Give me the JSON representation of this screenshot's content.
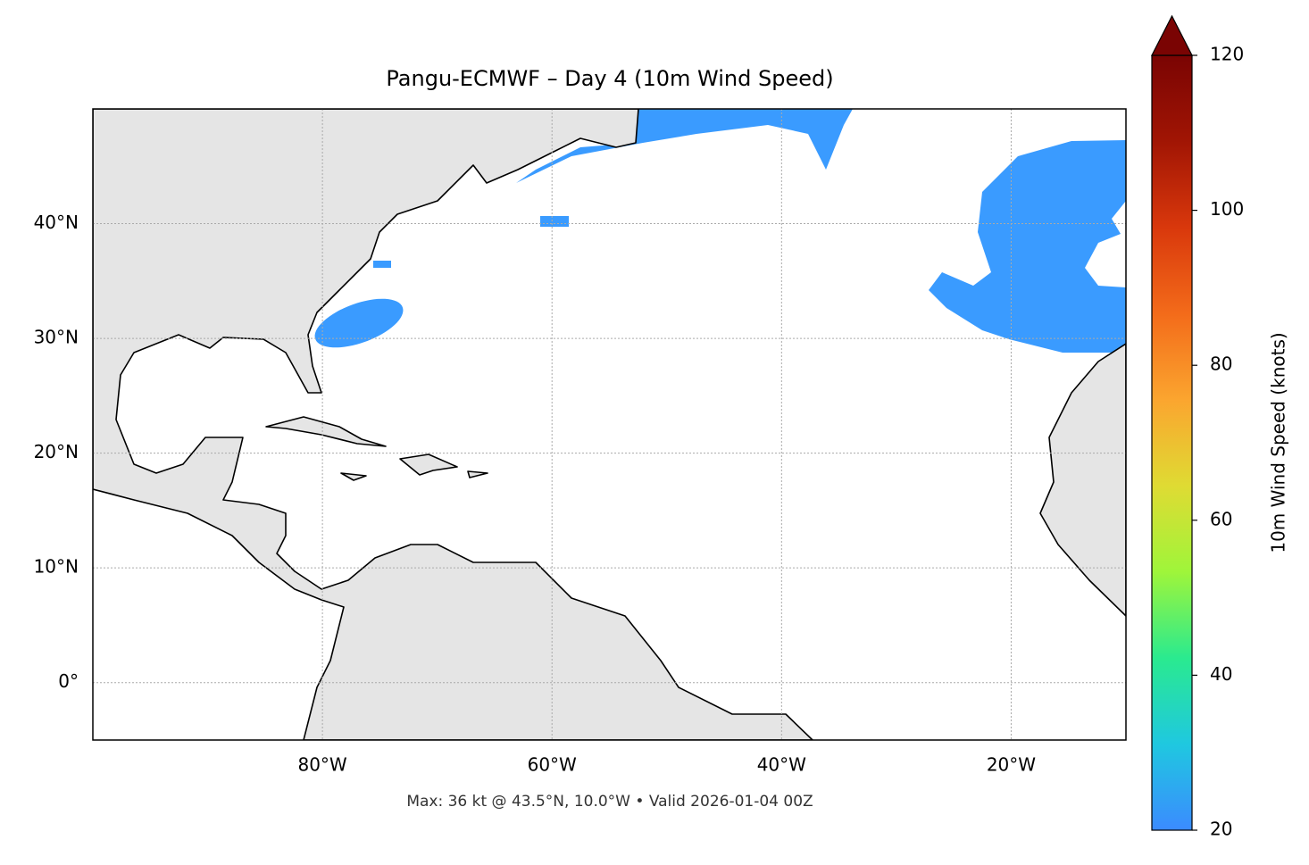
{
  "chart_data": {
    "type": "map",
    "title": "Pangu-ECMWF – Day 4 (10m Wind Speed)",
    "note": "Max: 36 kt @ 43.5°N, 10.0°W • Valid 2026-01-04 00Z",
    "xlim": [
      -100,
      -10
    ],
    "ylim": [
      -5,
      50
    ],
    "grid": true,
    "xticks": [
      {
        "value": -80,
        "label": "80°W"
      },
      {
        "value": -60,
        "label": "60°W"
      },
      {
        "value": -40,
        "label": "40°W"
      },
      {
        "value": -20,
        "label": "20°W"
      }
    ],
    "yticks": [
      {
        "value": 0,
        "label": "0°"
      },
      {
        "value": 10,
        "label": "10°N"
      },
      {
        "value": 20,
        "label": "20°N"
      },
      {
        "value": 30,
        "label": "30°N"
      },
      {
        "value": 40,
        "label": "40°N"
      }
    ],
    "colorbar": {
      "label": "10m Wind Speed (knots)",
      "lim": [
        20,
        120
      ],
      "ticks": [
        20,
        40,
        60,
        80,
        100,
        120
      ],
      "colors": [
        "#3b8bff",
        "#1fc8e0",
        "#2aea8f",
        "#9ff53a",
        "#dfdb33",
        "#fba52f",
        "#f36b1a",
        "#d9380c",
        "#a11504",
        "#7a0403"
      ]
    }
  }
}
